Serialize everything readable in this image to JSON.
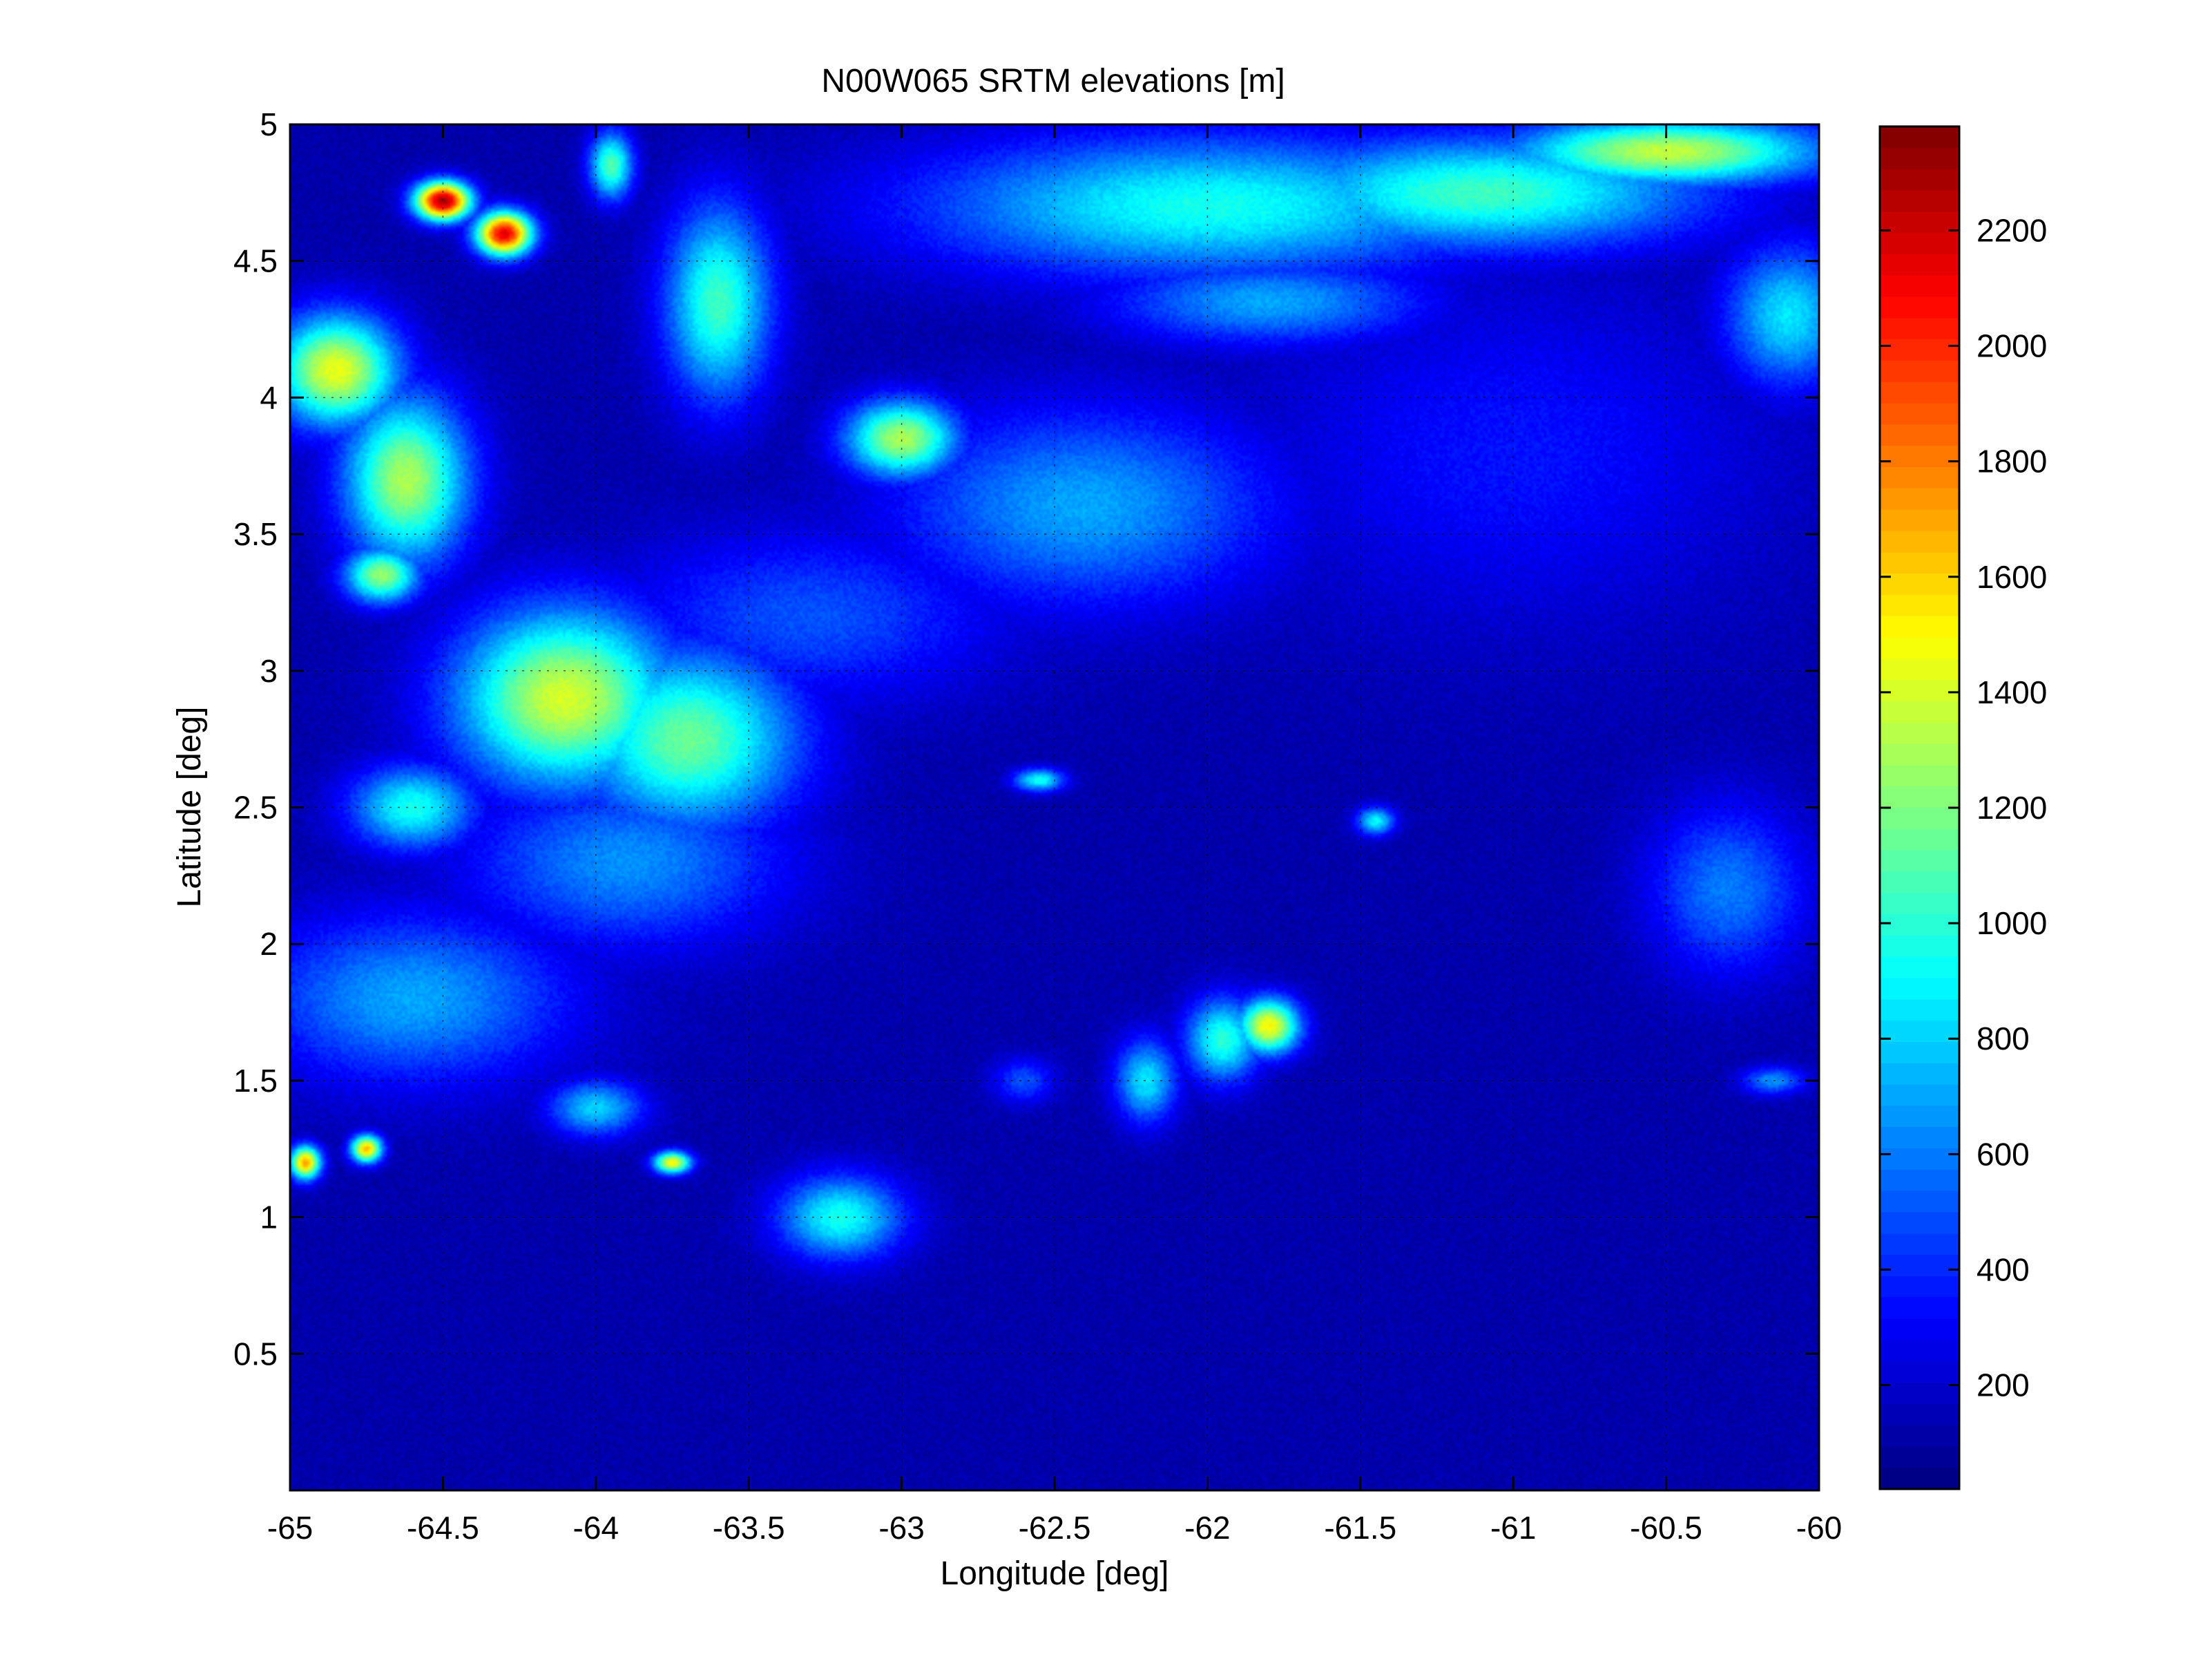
{
  "chart_data": {
    "type": "heatmap",
    "title": "N00W065 SRTM elevations [m]",
    "xlabel": "Longitude [deg]",
    "ylabel": "Latitude [deg]",
    "xlim": [
      -65,
      -60
    ],
    "ylim": [
      0,
      5
    ],
    "x_ticks": [
      -65,
      -64.5,
      -64,
      -63.5,
      -63,
      -62.5,
      -62,
      -61.5,
      -61,
      -60.5,
      -60
    ],
    "x_tick_labels": [
      "-65",
      "-64.5",
      "-64",
      "-63.5",
      "-63",
      "-62.5",
      "-62",
      "-61.5",
      "-61",
      "-60.5",
      "-60"
    ],
    "y_ticks": [
      0.5,
      1,
      1.5,
      2,
      2.5,
      3,
      3.5,
      4,
      4.5,
      5
    ],
    "y_tick_labels": [
      "0.5",
      "1",
      "1.5",
      "2",
      "2.5",
      "3",
      "3.5",
      "4",
      "4.5",
      "5"
    ],
    "grid": true,
    "colormap": "jet",
    "colorbar": {
      "range": [
        20,
        2380
      ],
      "ticks": [
        200,
        400,
        600,
        800,
        1000,
        1200,
        1400,
        1600,
        1800,
        2000,
        2200
      ],
      "tick_labels": [
        "200",
        "400",
        "600",
        "800",
        "1000",
        "1200",
        "1400",
        "1600",
        "1800",
        "2000",
        "2200"
      ]
    },
    "background_elevation_m": 120,
    "features": [
      {
        "lon": -64.5,
        "lat": 4.72,
        "elev": 2300,
        "rx": 0.09,
        "ry": 0.07
      },
      {
        "lon": -64.3,
        "lat": 4.6,
        "elev": 2150,
        "rx": 0.09,
        "ry": 0.08
      },
      {
        "lon": -64.85,
        "lat": 4.1,
        "elev": 1450,
        "rx": 0.2,
        "ry": 0.2
      },
      {
        "lon": -64.62,
        "lat": 3.7,
        "elev": 1300,
        "rx": 0.2,
        "ry": 0.3
      },
      {
        "lon": -64.7,
        "lat": 3.35,
        "elev": 1250,
        "rx": 0.12,
        "ry": 0.1
      },
      {
        "lon": -64.1,
        "lat": 2.9,
        "elev": 1400,
        "rx": 0.35,
        "ry": 0.32
      },
      {
        "lon": -63.7,
        "lat": 2.75,
        "elev": 1150,
        "rx": 0.35,
        "ry": 0.32
      },
      {
        "lon": -64.6,
        "lat": 2.5,
        "elev": 950,
        "rx": 0.2,
        "ry": 0.15
      },
      {
        "lon": -64.6,
        "lat": 1.8,
        "elev": 700,
        "rx": 0.5,
        "ry": 0.3
      },
      {
        "lon": -63.9,
        "lat": 2.3,
        "elev": 650,
        "rx": 0.5,
        "ry": 0.3
      },
      {
        "lon": -63.6,
        "lat": 4.35,
        "elev": 1050,
        "rx": 0.17,
        "ry": 0.35
      },
      {
        "lon": -63.6,
        "lat": 4.3,
        "elev": 800,
        "rx": 0.12,
        "ry": 0.18
      },
      {
        "lon": -63.95,
        "lat": 4.85,
        "elev": 1100,
        "rx": 0.07,
        "ry": 0.12
      },
      {
        "lon": -63.0,
        "lat": 3.85,
        "elev": 1300,
        "rx": 0.18,
        "ry": 0.14
      },
      {
        "lon": -62.4,
        "lat": 3.6,
        "elev": 700,
        "rx": 0.6,
        "ry": 0.35
      },
      {
        "lon": -63.3,
        "lat": 3.2,
        "elev": 500,
        "rx": 0.6,
        "ry": 0.3
      },
      {
        "lon": -62.0,
        "lat": 4.7,
        "elev": 950,
        "rx": 0.9,
        "ry": 0.25
      },
      {
        "lon": -61.1,
        "lat": 4.75,
        "elev": 1050,
        "rx": 0.7,
        "ry": 0.2
      },
      {
        "lon": -60.5,
        "lat": 4.9,
        "elev": 1350,
        "rx": 0.5,
        "ry": 0.12
      },
      {
        "lon": -61.8,
        "lat": 4.35,
        "elev": 700,
        "rx": 0.5,
        "ry": 0.15
      },
      {
        "lon": -60.1,
        "lat": 4.3,
        "elev": 850,
        "rx": 0.2,
        "ry": 0.25
      },
      {
        "lon": -63.2,
        "lat": 1.0,
        "elev": 950,
        "rx": 0.2,
        "ry": 0.15
      },
      {
        "lon": -63.75,
        "lat": 1.2,
        "elev": 1500,
        "rx": 0.06,
        "ry": 0.04
      },
      {
        "lon": -64.95,
        "lat": 1.2,
        "elev": 1700,
        "rx": 0.05,
        "ry": 0.06
      },
      {
        "lon": -64.75,
        "lat": 1.25,
        "elev": 1650,
        "rx": 0.05,
        "ry": 0.05
      },
      {
        "lon": -64.0,
        "lat": 1.4,
        "elev": 800,
        "rx": 0.15,
        "ry": 0.1
      },
      {
        "lon": -61.8,
        "lat": 1.7,
        "elev": 1500,
        "rx": 0.1,
        "ry": 0.1
      },
      {
        "lon": -61.95,
        "lat": 1.65,
        "elev": 1000,
        "rx": 0.12,
        "ry": 0.15
      },
      {
        "lon": -62.2,
        "lat": 1.5,
        "elev": 850,
        "rx": 0.1,
        "ry": 0.15
      },
      {
        "lon": -61.45,
        "lat": 2.45,
        "elev": 900,
        "rx": 0.06,
        "ry": 0.05
      },
      {
        "lon": -62.55,
        "lat": 2.6,
        "elev": 950,
        "rx": 0.08,
        "ry": 0.04
      },
      {
        "lon": -60.3,
        "lat": 2.2,
        "elev": 600,
        "rx": 0.25,
        "ry": 0.3
      },
      {
        "lon": -60.15,
        "lat": 1.5,
        "elev": 650,
        "rx": 0.1,
        "ry": 0.05
      },
      {
        "lon": -61.0,
        "lat": 3.8,
        "elev": 350,
        "rx": 0.8,
        "ry": 0.6
      },
      {
        "lon": -62.6,
        "lat": 1.5,
        "elev": 500,
        "rx": 0.1,
        "ry": 0.08
      }
    ]
  }
}
